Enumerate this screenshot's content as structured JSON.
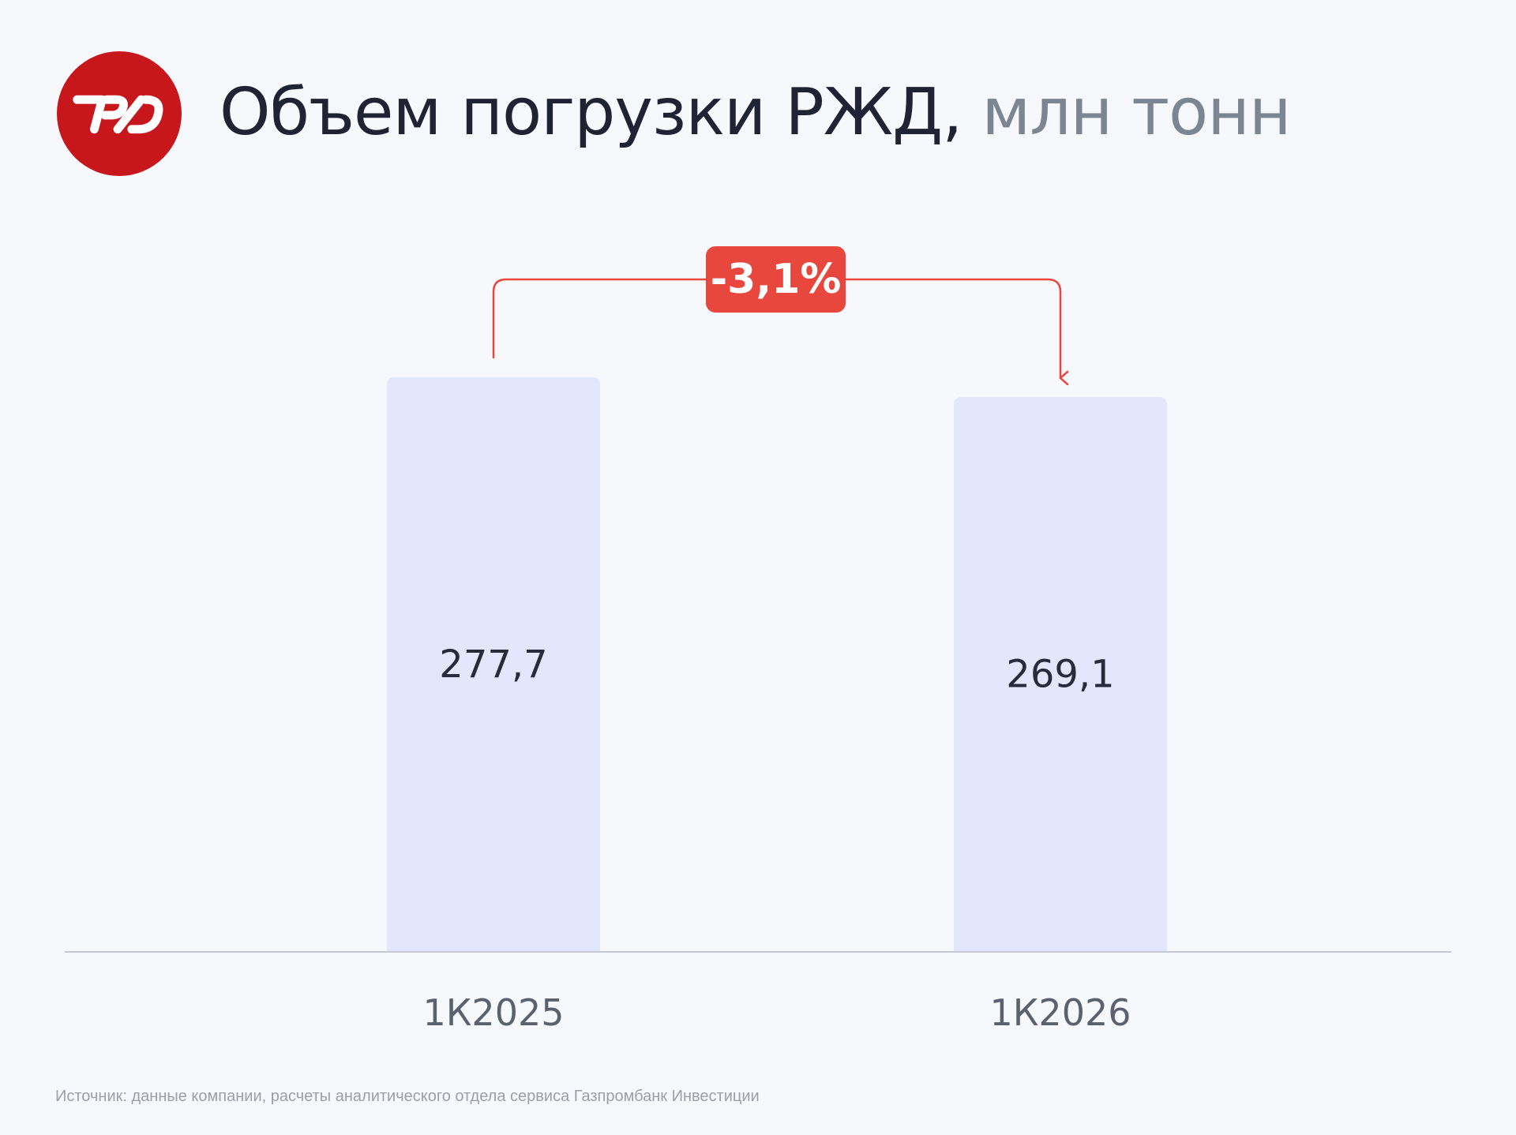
{
  "brand": {
    "logo_icon": "rzd-logo-icon",
    "logo_color": "#c8161d"
  },
  "title": {
    "main": "Объем погрузки РЖД,",
    "unit": "млн тонн"
  },
  "chart_data": {
    "type": "bar",
    "categories": [
      "1К2025",
      "1К2026"
    ],
    "values": [
      277.7,
      269.1
    ],
    "value_labels": [
      "277,7",
      "269,1"
    ],
    "change_label": "-3,1%",
    "title": "Объем погрузки РЖД, млн тонн",
    "xlabel": "",
    "ylabel": "",
    "grid": false,
    "bar_color": "#e2e7fd",
    "accent_color": "#e8473d"
  },
  "source": "Источник: данные компании, расчеты аналитического отдела сервиса Газпромбанк Инвестиции"
}
